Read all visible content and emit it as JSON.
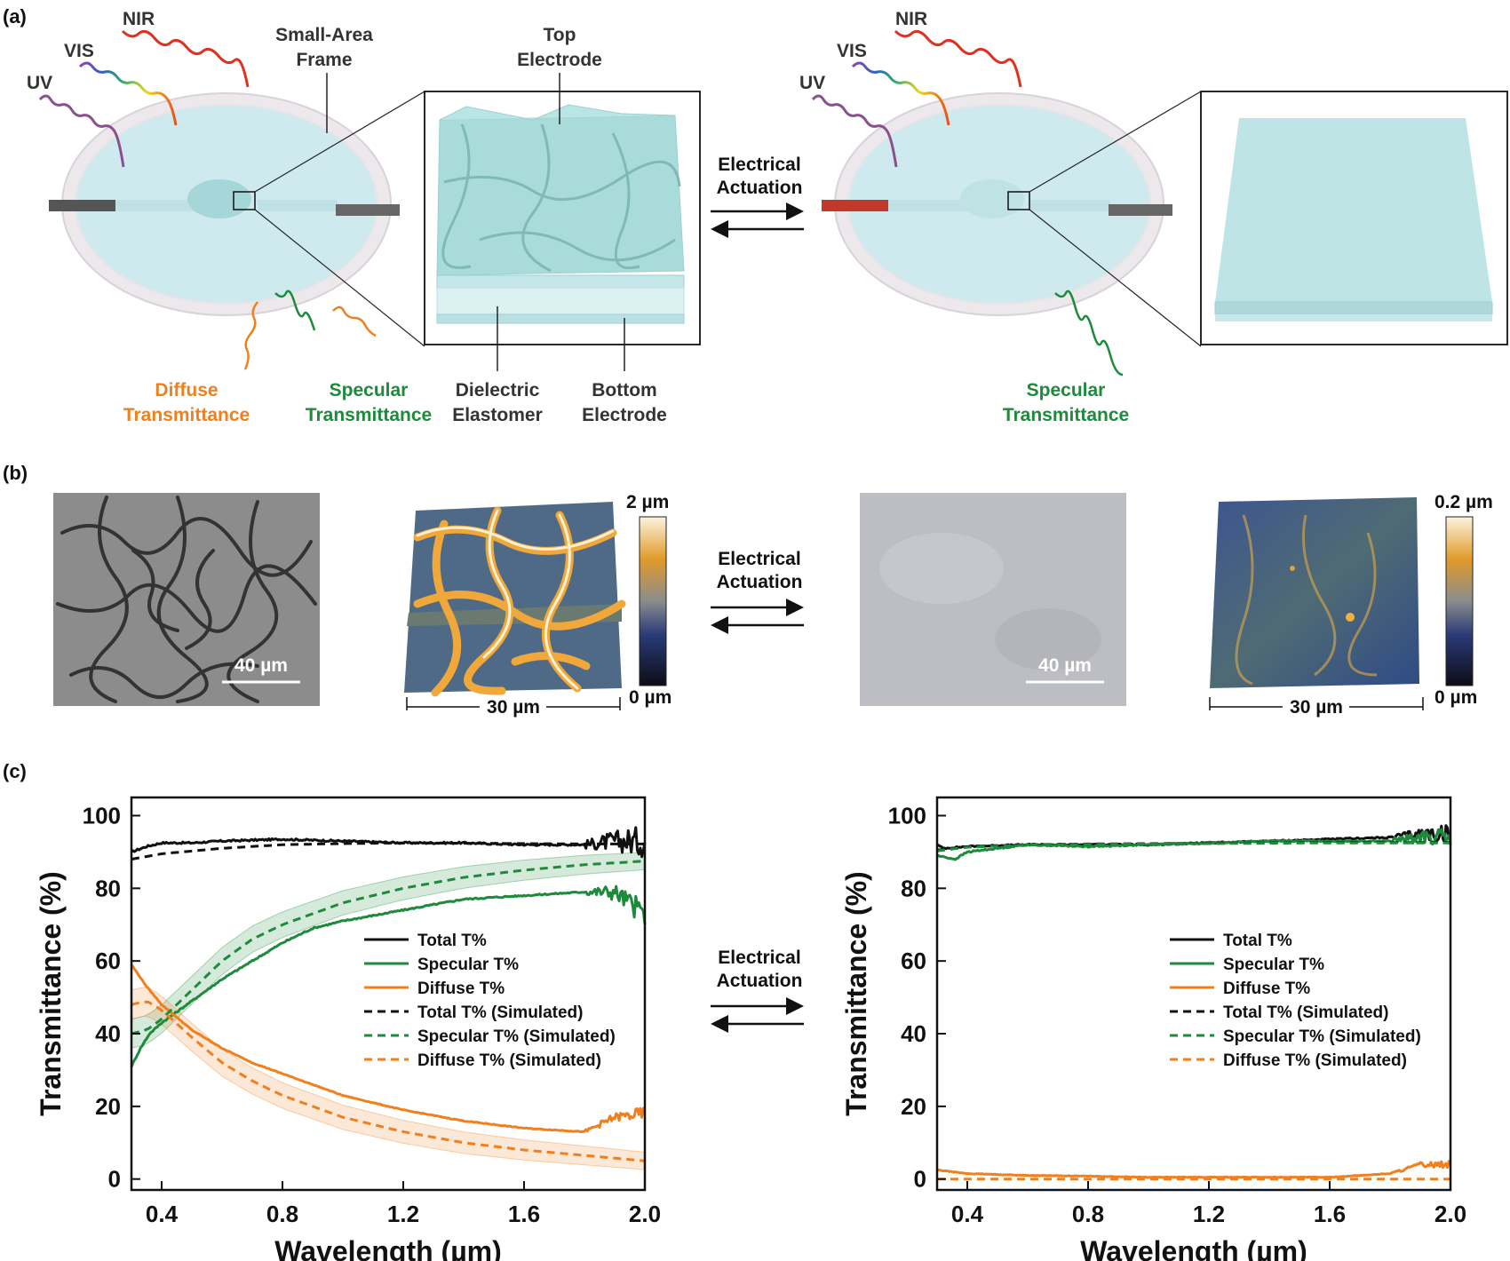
{
  "panels": {
    "a": "(a)",
    "b": "(b)",
    "c": "(c)"
  },
  "panel_a": {
    "light_labels": [
      "NIR",
      "VIS",
      "UV"
    ],
    "frame_label": [
      "Small-Area",
      "Frame"
    ],
    "top_electrode": [
      "Top",
      "Electrode"
    ],
    "dielectric": [
      "Dielectric",
      "Elastomer"
    ],
    "bottom_electrode": [
      "Bottom",
      "Electrode"
    ],
    "diffuse": [
      "Diffuse",
      "Transmittance"
    ],
    "specular": [
      "Specular",
      "Transmittance"
    ],
    "actuation": [
      "Electrical",
      "Actuation"
    ]
  },
  "panel_b": {
    "scale_bar": "40 µm",
    "afm_width": "30 µm",
    "colorbar_left": {
      "max": "2 µm",
      "min": "0 µm"
    },
    "colorbar_right": {
      "max": "0.2 µm",
      "min": "0 µm"
    },
    "actuation": [
      "Electrical",
      "Actuation"
    ]
  },
  "panel_c": {
    "actuation": [
      "Electrical",
      "Actuation"
    ],
    "legend": [
      "Total T%",
      "Specular T%",
      "Diffuse T%",
      "Total T% (Simulated)",
      "Specular T% (Simulated)",
      "Diffuse T% (Simulated)"
    ]
  },
  "colors": {
    "total": "#111111",
    "specular": "#1e8a3c",
    "diffuse": "#f07f1e",
    "film": "#bfe4e6",
    "frame": "#e6e3e6"
  },
  "chart_data": [
    {
      "type": "line",
      "xlabel": "Wavelength (µm)",
      "ylabel": "Transmittance (%)",
      "xlim": [
        0.3,
        2.0
      ],
      "ylim": [
        -3,
        105
      ],
      "xticks": [
        0.4,
        0.8,
        1.2,
        1.6,
        2.0
      ],
      "yticks": [
        0,
        20,
        40,
        60,
        80,
        100
      ],
      "legend_position": "center-right",
      "series": [
        {
          "name": "Total T%",
          "style": "solid",
          "color": "#111111",
          "noise": 1.0,
          "x": [
            0.3,
            0.35,
            0.4,
            0.5,
            0.6,
            0.8,
            1.0,
            1.2,
            1.4,
            1.6,
            1.8,
            1.9,
            2.0
          ],
          "y": [
            90,
            91.5,
            92.5,
            92.5,
            93,
            93.5,
            93,
            92.5,
            92.5,
            92,
            92,
            93,
            93
          ]
        },
        {
          "name": "Specular T%",
          "style": "solid",
          "color": "#1e8a3c",
          "noise": 0.8,
          "x": [
            0.3,
            0.33,
            0.36,
            0.4,
            0.5,
            0.6,
            0.7,
            0.8,
            0.9,
            1.0,
            1.2,
            1.4,
            1.6,
            1.8,
            1.9,
            2.0
          ],
          "y": [
            31,
            36,
            40,
            43,
            49,
            55,
            60,
            65,
            69,
            71,
            74,
            77,
            78,
            79,
            79,
            73
          ]
        },
        {
          "name": "Diffuse T%",
          "style": "solid",
          "color": "#f07f1e",
          "noise": 0.4,
          "x": [
            0.3,
            0.35,
            0.4,
            0.5,
            0.6,
            0.7,
            0.8,
            0.9,
            1.0,
            1.2,
            1.4,
            1.6,
            1.8,
            1.9,
            2.0
          ],
          "y": [
            59,
            53,
            48,
            41,
            36,
            32,
            29,
            26,
            23,
            19,
            16,
            14,
            13,
            17,
            18
          ]
        },
        {
          "name": "Total T% (Simulated)",
          "style": "dashed",
          "color": "#111111",
          "x": [
            0.3,
            0.4,
            0.6,
            0.8,
            1.0,
            1.2,
            1.4,
            1.6,
            1.8,
            2.0
          ],
          "y": [
            88,
            89.5,
            91,
            92,
            92.3,
            92.5,
            92.4,
            92.3,
            92.2,
            92.2
          ]
        },
        {
          "name": "Specular T% (Simulated)",
          "style": "dashed",
          "color": "#1e8a3c",
          "x": [
            0.3,
            0.35,
            0.4,
            0.5,
            0.6,
            0.7,
            0.8,
            0.9,
            1.0,
            1.2,
            1.4,
            1.6,
            1.8,
            2.0
          ],
          "y": [
            40,
            41,
            44,
            52,
            60,
            66,
            70,
            73,
            76,
            80,
            83,
            85,
            86.5,
            87.5
          ]
        },
        {
          "name": "Diffuse T% (Simulated)",
          "style": "dashed",
          "color": "#f07f1e",
          "x": [
            0.3,
            0.35,
            0.4,
            0.5,
            0.6,
            0.7,
            0.8,
            0.9,
            1.0,
            1.2,
            1.4,
            1.6,
            1.8,
            2.0
          ],
          "y": [
            48,
            49,
            46.5,
            39,
            32,
            27,
            23,
            20,
            17,
            13,
            10,
            8,
            6.5,
            5
          ]
        }
      ]
    },
    {
      "type": "line",
      "xlabel": "Wavelength (µm)",
      "ylabel": "Transmittance (%)",
      "xlim": [
        0.3,
        2.0
      ],
      "ylim": [
        -3,
        105
      ],
      "xticks": [
        0.4,
        0.8,
        1.2,
        1.6,
        2.0
      ],
      "yticks": [
        0,
        20,
        40,
        60,
        80,
        100
      ],
      "legend_position": "center-right",
      "series": [
        {
          "name": "Total T%",
          "style": "solid",
          "color": "#111111",
          "noise": 0.8,
          "x": [
            0.3,
            0.32,
            0.4,
            0.6,
            0.8,
            1.0,
            1.2,
            1.4,
            1.6,
            1.8,
            1.9,
            2.0
          ],
          "y": [
            92,
            91,
            91.5,
            92,
            92,
            92,
            92.5,
            93,
            93.5,
            94,
            95,
            95
          ]
        },
        {
          "name": "Specular T%",
          "style": "solid",
          "color": "#1e8a3c",
          "noise": 0.8,
          "x": [
            0.3,
            0.36,
            0.4,
            0.6,
            0.8,
            1.0,
            1.2,
            1.4,
            1.6,
            1.8,
            1.9,
            2.0
          ],
          "y": [
            89,
            88,
            90,
            92,
            91.5,
            92,
            92.5,
            93,
            93,
            93,
            94,
            94
          ]
        },
        {
          "name": "Diffuse T%",
          "style": "solid",
          "color": "#f07f1e",
          "noise": 0.3,
          "x": [
            0.3,
            0.4,
            0.6,
            0.8,
            1.0,
            1.2,
            1.4,
            1.6,
            1.8,
            1.9,
            2.0
          ],
          "y": [
            2.5,
            1.5,
            1,
            0.8,
            0.5,
            0.5,
            0.5,
            0.5,
            1.5,
            4,
            4
          ]
        },
        {
          "name": "Total T% (Simulated)",
          "style": "dashed",
          "color": "#111111",
          "x": [
            0.3,
            0.4,
            0.6,
            0.8,
            1.0,
            1.2,
            1.4,
            1.6,
            1.8,
            2.0
          ],
          "y": [
            90.5,
            91.5,
            92,
            92.2,
            92.3,
            92.4,
            92.5,
            92.6,
            92.6,
            92.6
          ]
        },
        {
          "name": "Specular T% (Simulated)",
          "style": "dashed",
          "color": "#1e8a3c",
          "x": [
            0.3,
            0.4,
            0.6,
            0.8,
            1.0,
            1.2,
            1.4,
            1.6,
            1.8,
            2.0
          ],
          "y": [
            90.3,
            91.3,
            91.9,
            92.1,
            92.2,
            92.3,
            92.4,
            92.5,
            92.5,
            92.5
          ]
        },
        {
          "name": "Diffuse T% (Simulated)",
          "style": "dashed",
          "color": "#f07f1e",
          "x": [
            0.3,
            0.6,
            1.0,
            1.5,
            2.0
          ],
          "y": [
            0,
            0,
            0,
            0,
            0
          ]
        }
      ]
    }
  ]
}
